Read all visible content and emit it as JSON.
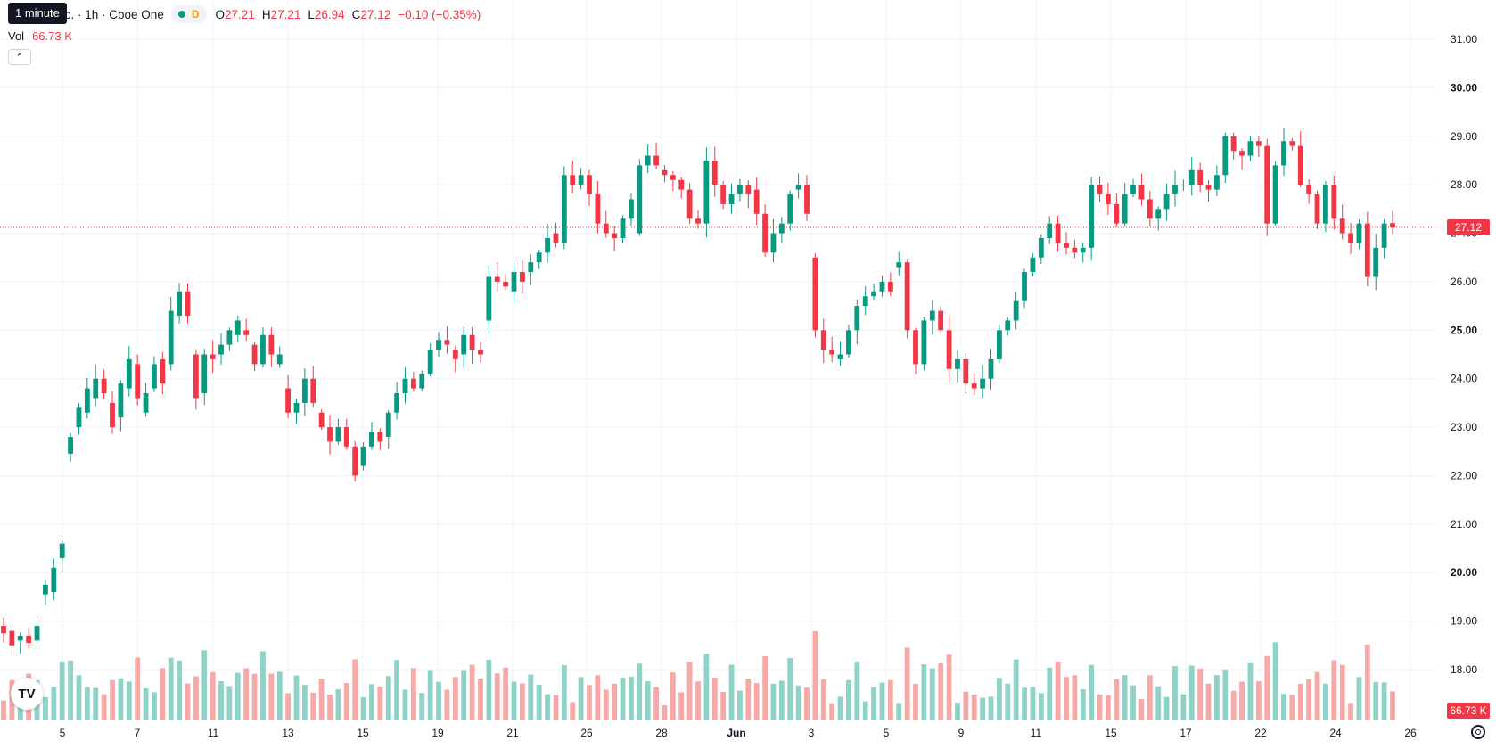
{
  "legend": {
    "title": "atforms, Inc. · 1h · Cboe One",
    "d_flag": "D",
    "ohlc": [
      {
        "k": "O",
        "v": "27.21"
      },
      {
        "k": "H",
        "v": "27.21"
      },
      {
        "k": "L",
        "v": "26.94"
      },
      {
        "k": "C",
        "v": "27.12"
      }
    ],
    "change": "−0.10 (−0.35%)"
  },
  "tooltip": "1 minute",
  "volume": {
    "label": "Vol",
    "value": "66.73 K",
    "tag": "66.73 K"
  },
  "colors": {
    "up": "#089981",
    "down": "#f23645",
    "vol_up": "#8fd3c8",
    "vol_down": "#f7a9a7",
    "grid": "#f0f3fa"
  },
  "icons": {
    "logo": "tradingview-logo-icon",
    "settings": "settings-gear-icon",
    "collapse": "chevron-up-icon"
  },
  "chart_data": {
    "type": "candlestick",
    "interval": "1h",
    "y_axis": {
      "min": 18,
      "max": 31,
      "ticks": [
        "31.00",
        "30.00",
        "29.00",
        "28.00",
        "27.00",
        "26.00",
        "25.00",
        "24.00",
        "23.00",
        "22.00",
        "21.00",
        "20.00",
        "19.00",
        "18.00"
      ]
    },
    "x_ticks": [
      "5",
      "7",
      "11",
      "13",
      "15",
      "19",
      "21",
      "26",
      "28",
      "Jun",
      "3",
      "5",
      "9",
      "11",
      "15",
      "17",
      "22",
      "24",
      "26"
    ],
    "last_price": 27.12,
    "last_price_label": "27.12",
    "grid": true,
    "series_points": [
      [
        18.9,
        18.75
      ],
      [
        18.8,
        18.5
      ],
      [
        18.6,
        18.7
      ],
      [
        18.7,
        18.55
      ],
      [
        18.6,
        18.9
      ],
      [
        19.55,
        19.75
      ],
      [
        19.6,
        20.1
      ],
      [
        20.3,
        20.6
      ],
      [
        22.45,
        22.8
      ],
      [
        23.0,
        23.4
      ],
      [
        23.3,
        23.8
      ],
      [
        23.6,
        24.0
      ],
      [
        24.0,
        23.7
      ],
      [
        23.5,
        23.0
      ],
      [
        23.2,
        23.9
      ],
      [
        23.8,
        24.4
      ],
      [
        24.3,
        23.6
      ],
      [
        23.3,
        23.7
      ],
      [
        23.8,
        24.3
      ],
      [
        24.4,
        23.9
      ],
      [
        24.3,
        25.4
      ],
      [
        25.3,
        25.8
      ],
      [
        25.8,
        25.3
      ],
      [
        24.5,
        23.6
      ],
      [
        23.7,
        24.5
      ],
      [
        24.5,
        24.4
      ],
      [
        24.5,
        24.7
      ],
      [
        24.7,
        25.0
      ],
      [
        24.9,
        25.2
      ],
      [
        25.0,
        24.9
      ],
      [
        24.7,
        24.3
      ],
      [
        24.3,
        24.9
      ],
      [
        24.9,
        24.5
      ],
      [
        24.3,
        24.5
      ],
      [
        23.8,
        23.3
      ],
      [
        23.3,
        23.5
      ],
      [
        23.5,
        24.0
      ],
      [
        24.0,
        23.5
      ],
      [
        23.3,
        23.0
      ],
      [
        23.0,
        22.7
      ],
      [
        22.7,
        23.0
      ],
      [
        23.0,
        22.6
      ],
      [
        22.6,
        22.0
      ],
      [
        22.2,
        22.6
      ],
      [
        22.6,
        22.9
      ],
      [
        22.9,
        22.7
      ],
      [
        22.8,
        23.3
      ],
      [
        23.3,
        23.7
      ],
      [
        23.7,
        24.0
      ],
      [
        24.0,
        23.8
      ],
      [
        23.8,
        24.1
      ],
      [
        24.1,
        24.6
      ],
      [
        24.6,
        24.8
      ],
      [
        24.8,
        24.7
      ],
      [
        24.6,
        24.4
      ],
      [
        24.5,
        24.9
      ],
      [
        24.9,
        24.6
      ],
      [
        24.6,
        24.5
      ],
      [
        25.2,
        26.1
      ],
      [
        26.1,
        26.0
      ],
      [
        26.0,
        25.9
      ],
      [
        25.8,
        26.2
      ],
      [
        26.2,
        26.0
      ],
      [
        26.2,
        26.4
      ],
      [
        26.4,
        26.6
      ],
      [
        26.6,
        26.9
      ],
      [
        27.0,
        26.8
      ],
      [
        26.8,
        28.2
      ],
      [
        28.2,
        28.0
      ],
      [
        28.0,
        28.2
      ],
      [
        28.2,
        27.8
      ],
      [
        27.8,
        27.2
      ],
      [
        27.2,
        27.0
      ],
      [
        27.0,
        26.9
      ],
      [
        26.9,
        27.3
      ],
      [
        27.3,
        27.7
      ],
      [
        27.0,
        28.4
      ],
      [
        28.4,
        28.6
      ],
      [
        28.6,
        28.4
      ],
      [
        28.3,
        28.2
      ],
      [
        28.2,
        28.1
      ],
      [
        28.1,
        27.9
      ],
      [
        27.9,
        27.3
      ],
      [
        27.3,
        27.2
      ],
      [
        27.2,
        28.5
      ],
      [
        28.5,
        28.0
      ],
      [
        28.0,
        27.6
      ],
      [
        27.6,
        27.8
      ],
      [
        27.8,
        28.0
      ],
      [
        28.0,
        27.8
      ],
      [
        27.9,
        27.4
      ],
      [
        27.4,
        26.6
      ],
      [
        26.6,
        27.0
      ],
      [
        27.0,
        27.2
      ],
      [
        27.2,
        27.8
      ],
      [
        27.9,
        28.0
      ],
      [
        28.0,
        27.4
      ],
      [
        26.5,
        25.0
      ],
      [
        25.0,
        24.6
      ],
      [
        24.6,
        24.5
      ],
      [
        24.4,
        24.5
      ],
      [
        24.5,
        25.0
      ],
      [
        25.0,
        25.5
      ],
      [
        25.5,
        25.7
      ],
      [
        25.7,
        25.8
      ],
      [
        25.8,
        26.0
      ],
      [
        26.0,
        25.8
      ],
      [
        26.3,
        26.4
      ],
      [
        26.4,
        25.0
      ],
      [
        25.0,
        24.3
      ],
      [
        24.3,
        25.2
      ],
      [
        25.2,
        25.4
      ],
      [
        25.4,
        25.0
      ],
      [
        25.0,
        24.2
      ],
      [
        24.2,
        24.4
      ],
      [
        24.4,
        23.9
      ],
      [
        23.9,
        23.8
      ],
      [
        23.8,
        24.0
      ],
      [
        24.0,
        24.4
      ],
      [
        24.4,
        25.0
      ],
      [
        25.0,
        25.2
      ],
      [
        25.2,
        25.6
      ],
      [
        25.6,
        26.2
      ],
      [
        26.2,
        26.5
      ],
      [
        26.5,
        26.9
      ],
      [
        26.9,
        27.2
      ],
      [
        27.2,
        26.8
      ],
      [
        26.8,
        26.7
      ],
      [
        26.7,
        26.6
      ],
      [
        26.6,
        26.7
      ],
      [
        26.7,
        28.0
      ],
      [
        28.0,
        27.8
      ],
      [
        27.8,
        27.6
      ],
      [
        27.6,
        27.2
      ],
      [
        27.2,
        27.8
      ],
      [
        27.8,
        28.0
      ],
      [
        28.0,
        27.7
      ],
      [
        27.7,
        27.3
      ],
      [
        27.3,
        27.5
      ],
      [
        27.5,
        27.8
      ],
      [
        27.8,
        28.0
      ],
      [
        28.0,
        28.0
      ],
      [
        28.0,
        28.3
      ],
      [
        28.3,
        28.0
      ],
      [
        28.0,
        27.9
      ],
      [
        27.9,
        28.2
      ],
      [
        28.2,
        29.0
      ],
      [
        29.0,
        28.7
      ],
      [
        28.7,
        28.6
      ],
      [
        28.6,
        28.9
      ],
      [
        28.9,
        28.8
      ],
      [
        28.8,
        27.2
      ],
      [
        27.2,
        28.4
      ],
      [
        28.4,
        28.9
      ],
      [
        28.9,
        28.8
      ],
      [
        28.8,
        28.0
      ],
      [
        28.0,
        27.8
      ],
      [
        27.8,
        27.2
      ],
      [
        27.2,
        28.0
      ],
      [
        28.0,
        27.3
      ],
      [
        27.3,
        27.0
      ],
      [
        27.0,
        26.8
      ],
      [
        26.8,
        27.2
      ],
      [
        27.2,
        26.1
      ],
      [
        26.1,
        26.7
      ],
      [
        26.7,
        27.2
      ],
      [
        27.21,
        27.12
      ]
    ]
  }
}
